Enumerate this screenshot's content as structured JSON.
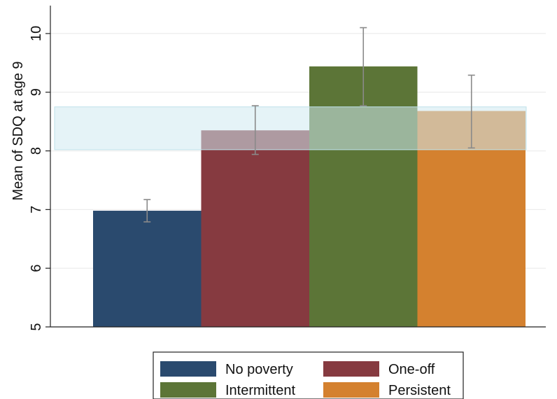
{
  "chart_data": {
    "type": "bar",
    "title": "",
    "xlabel": "",
    "ylabel": "Mean of SDQ at age 9",
    "ylim": [
      5,
      10.5
    ],
    "yticks": [
      5,
      6,
      7,
      8,
      9,
      10
    ],
    "grid": true,
    "legend_position": "bottom",
    "series": [
      {
        "name": "No poverty",
        "value": 6.98,
        "ci_low": 6.79,
        "ci_high": 7.17,
        "color": "#2a4a6e"
      },
      {
        "name": "One-off",
        "value": 8.35,
        "ci_low": 7.94,
        "ci_high": 8.77,
        "color": "#863a40"
      },
      {
        "name": "Intermittent",
        "value": 9.44,
        "ci_low": 8.77,
        "ci_high": 10.1,
        "color": "#5c7537"
      },
      {
        "name": "Persistent",
        "value": 8.68,
        "ci_low": 8.05,
        "ci_high": 9.29,
        "color": "#d4812f"
      }
    ],
    "reference_band": {
      "low": 8.02,
      "high": 8.75,
      "color": "#cfeaf0"
    }
  }
}
